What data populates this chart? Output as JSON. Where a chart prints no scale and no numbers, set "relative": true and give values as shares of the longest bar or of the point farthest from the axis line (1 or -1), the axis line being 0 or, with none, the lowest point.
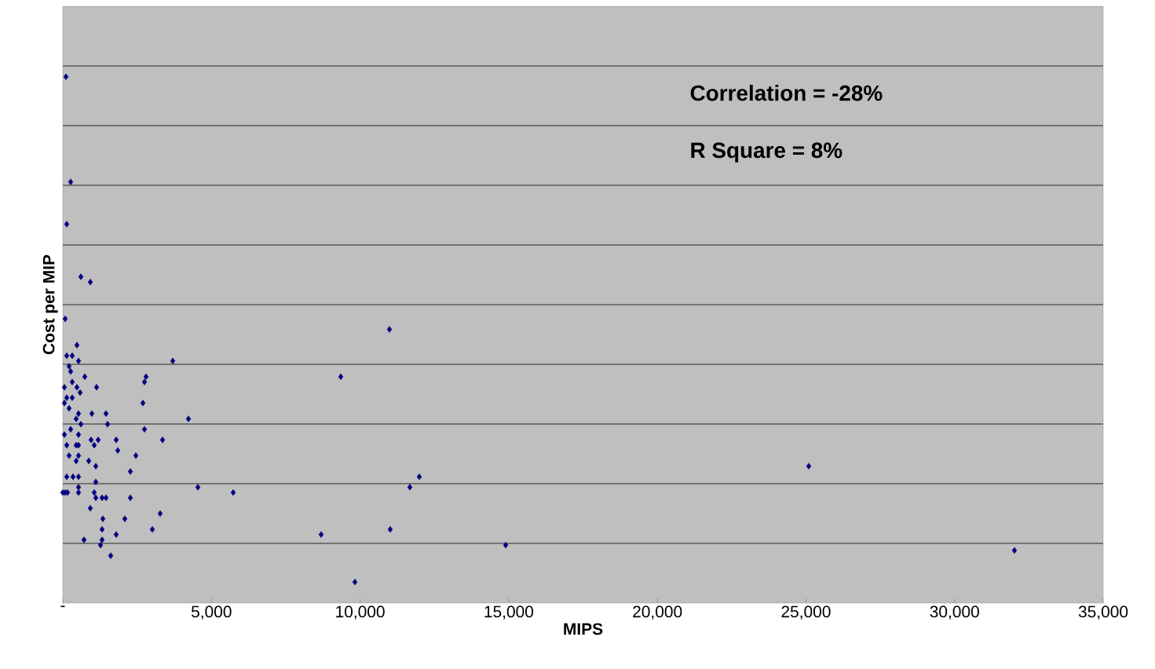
{
  "chart_data": {
    "type": "scatter",
    "xlabel": "MIPS",
    "ylabel": "Cost per MIP",
    "relative": true,
    "color": "#000080",
    "marker": "diamond",
    "grid": "y",
    "xlim": [
      0,
      35000
    ],
    "xticks": [
      {
        "value": 0,
        "label": "-"
      },
      {
        "value": 5000,
        "label": "5,000"
      },
      {
        "value": 10000,
        "label": "10,000"
      },
      {
        "value": 15000,
        "label": "15,000"
      },
      {
        "value": 20000,
        "label": "20,000"
      },
      {
        "value": 25000,
        "label": "25,000"
      },
      {
        "value": 30000,
        "label": "30,000"
      },
      {
        "value": 35000,
        "label": "35,000"
      }
    ],
    "annotations": [
      "Correlation = -28%",
      "R Square = 8%"
    ],
    "x": [
      106,
      264,
      132,
      608,
      925,
      79,
      10989,
      475,
      132,
      317,
      528,
      3698,
      211,
      264,
      2800,
      9351,
      740,
      53,
      317,
      475,
      2747,
      1136,
      581,
      132,
      317,
      53,
      211,
      2694,
      1453,
      977,
      528,
      449,
      608,
      4226,
      1506,
      264,
      53,
      2747,
      1189,
      528,
      951,
      1796,
      3355,
      449,
      1057,
      132,
      528,
      1849,
      211,
      528,
      2457,
      449,
      872,
      1109,
      2272,
      25094,
      132,
      343,
      528,
      11992,
      1109,
      4543,
      5732,
      11675,
      79,
      528,
      1057,
      0,
      158,
      528,
      1109,
      1321,
      1453,
      2272,
      925,
      3275,
      1347,
      2087,
      3011,
      11015,
      1321,
      8691,
      1796,
      1321,
      713,
      1268,
      14898,
      1611,
      32015,
      9826
    ],
    "values": [
      1.0,
      0.8,
      0.72,
      0.62,
      0.61,
      0.54,
      0.52,
      0.49,
      0.47,
      0.47,
      0.46,
      0.46,
      0.45,
      0.44,
      0.43,
      0.43,
      0.43,
      0.41,
      0.42,
      0.41,
      0.42,
      0.41,
      0.4,
      0.39,
      0.39,
      0.38,
      0.37,
      0.38,
      0.36,
      0.36,
      0.36,
      0.35,
      0.34,
      0.35,
      0.34,
      0.33,
      0.32,
      0.33,
      0.31,
      0.32,
      0.31,
      0.31,
      0.31,
      0.3,
      0.3,
      0.3,
      0.3,
      0.29,
      0.28,
      0.28,
      0.28,
      0.27,
      0.27,
      0.26,
      0.25,
      0.26,
      0.24,
      0.24,
      0.24,
      0.24,
      0.23,
      0.22,
      0.21,
      0.22,
      0.21,
      0.22,
      0.21,
      0.21,
      0.21,
      0.21,
      0.2,
      0.2,
      0.2,
      0.2,
      0.18,
      0.17,
      0.16,
      0.16,
      0.14,
      0.14,
      0.14,
      0.13,
      0.13,
      0.12,
      0.12,
      0.11,
      0.11,
      0.09,
      0.1,
      0.04
    ]
  }
}
